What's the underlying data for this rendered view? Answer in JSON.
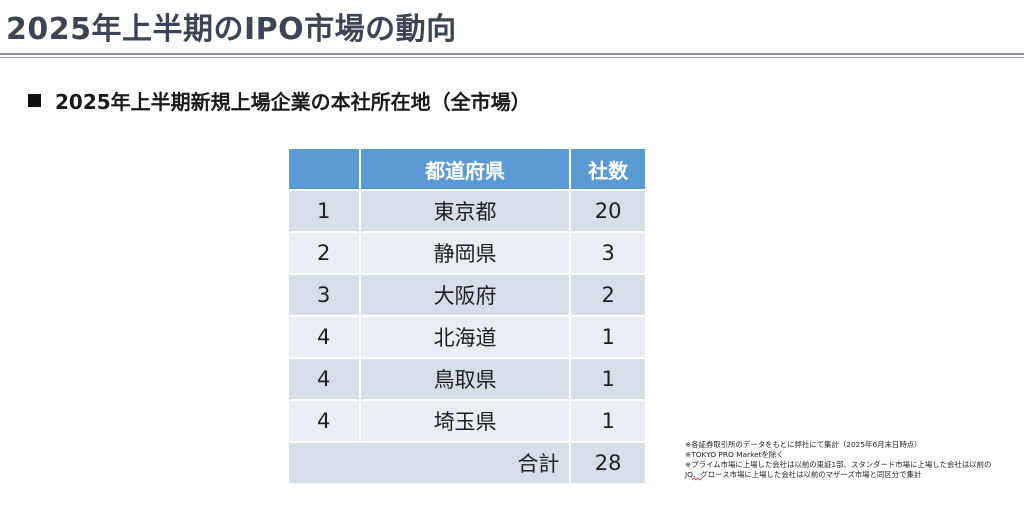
{
  "slide": {
    "title": "2025年上半期のIPO市場の動向",
    "subtitle": "2025年上半期新規上場企業の本社所在地（全市場）"
  },
  "table": {
    "headers": [
      "",
      "都道府県",
      "社数"
    ],
    "rows": [
      {
        "rank": "1",
        "prefecture": "東京都",
        "count": "20"
      },
      {
        "rank": "2",
        "prefecture": "静岡県",
        "count": "3"
      },
      {
        "rank": "3",
        "prefecture": "大阪府",
        "count": "2"
      },
      {
        "rank": "4",
        "prefecture": "北海道",
        "count": "1"
      },
      {
        "rank": "4",
        "prefecture": "鳥取県",
        "count": "1"
      },
      {
        "rank": "4",
        "prefecture": "埼玉県",
        "count": "1"
      }
    ],
    "total_label": "合計",
    "total_value": "28"
  },
  "notes": [
    "※各証券取引所のデータをもとに弊社にて集計（2025年6月末日時点）",
    "※TOKYO PRO Marketを除く",
    "※プライム市場に上場した会社は以前の東証1部、スタンダード市場に上場した会社は以前の",
    "JQ、グロース市場に上場した会社は以前のマザーズ市場と同区分で集計"
  ],
  "colors": {
    "header_bg": "#5b9bd5",
    "row_bg_dark": "#d5dfec",
    "row_bg_light": "#e9eef6",
    "title_color": "#3b4557"
  }
}
